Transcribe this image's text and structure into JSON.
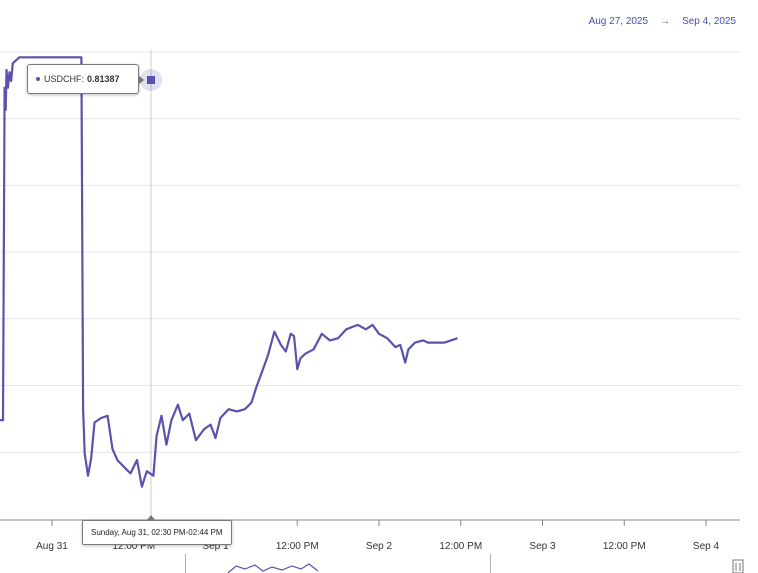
{
  "range": {
    "start": "Aug 27, 2025",
    "arrow": "→",
    "end": "Sep 4, 2025"
  },
  "tooltip": {
    "series": "USDCHF:",
    "value": "0.81387"
  },
  "crosshair_label": "Sunday, Aug 31, 02:30 PM-02:44 PM",
  "colors": {
    "line": "#5a53ad",
    "range_text": "#3f51b5",
    "grid": "#e6e6e6"
  },
  "chart_data": {
    "type": "line",
    "title": "",
    "xlabel": "",
    "ylabel": "",
    "grid": true,
    "x_ticks": [
      {
        "label": "Aug 31",
        "day": 0
      },
      {
        "label": "12:00 PM",
        "day": 0.5
      },
      {
        "label": "Sep 1",
        "day": 1
      },
      {
        "label": "12:00 PM",
        "day": 1.5
      },
      {
        "label": "Sep 2",
        "day": 2
      },
      {
        "label": "12:00 PM",
        "day": 2.5
      },
      {
        "label": "Sep 3",
        "day": 3
      },
      {
        "label": "12:00 PM",
        "day": 3.5
      },
      {
        "label": "Sep 4",
        "day": 4
      }
    ],
    "xlim": [
      -0.65,
      4.2
    ],
    "ylim": [
      0.793,
      0.8142
    ],
    "series": [
      {
        "name": "USDCHF",
        "points": [
          [
            -0.65,
            0.7975
          ],
          [
            -0.3,
            0.7975
          ],
          [
            -0.29,
            0.8125
          ],
          [
            -0.283,
            0.8115
          ],
          [
            -0.278,
            0.8133
          ],
          [
            -0.27,
            0.8125
          ],
          [
            -0.26,
            0.8132
          ],
          [
            -0.25,
            0.8128
          ],
          [
            -0.24,
            0.8136
          ],
          [
            -0.2,
            0.81387
          ],
          [
            0.18,
            0.81387
          ],
          [
            0.19,
            0.798
          ],
          [
            0.2,
            0.796
          ],
          [
            0.22,
            0.795
          ],
          [
            0.24,
            0.7958
          ],
          [
            0.26,
            0.7974
          ],
          [
            0.3,
            0.7976
          ],
          [
            0.34,
            0.7977
          ],
          [
            0.37,
            0.7962
          ],
          [
            0.4,
            0.7957
          ],
          [
            0.44,
            0.7954
          ],
          [
            0.48,
            0.7951
          ],
          [
            0.52,
            0.7957
          ],
          [
            0.55,
            0.7945
          ],
          [
            0.58,
            0.7952
          ],
          [
            0.62,
            0.795
          ],
          [
            0.64,
            0.7968
          ],
          [
            0.67,
            0.7977
          ],
          [
            0.7,
            0.7964
          ],
          [
            0.73,
            0.7975
          ],
          [
            0.77,
            0.7982
          ],
          [
            0.8,
            0.7975
          ],
          [
            0.84,
            0.7978
          ],
          [
            0.88,
            0.7966
          ],
          [
            0.93,
            0.7971
          ],
          [
            0.97,
            0.7973
          ],
          [
            1.0,
            0.7967
          ],
          [
            1.03,
            0.7976
          ],
          [
            1.08,
            0.798
          ],
          [
            1.13,
            0.7979
          ],
          [
            1.18,
            0.798
          ],
          [
            1.22,
            0.7983
          ],
          [
            1.25,
            0.799
          ],
          [
            1.28,
            0.7996
          ],
          [
            1.32,
            0.8004
          ],
          [
            1.36,
            0.8015
          ],
          [
            1.38,
            0.8012
          ],
          [
            1.4,
            0.8009
          ],
          [
            1.43,
            0.8006
          ],
          [
            1.46,
            0.8014
          ],
          [
            1.48,
            0.8013
          ],
          [
            1.5,
            0.7998
          ],
          [
            1.52,
            0.8003
          ],
          [
            1.55,
            0.8005
          ],
          [
            1.6,
            0.8007
          ],
          [
            1.65,
            0.8014
          ],
          [
            1.7,
            0.8011
          ],
          [
            1.75,
            0.8012
          ],
          [
            1.8,
            0.8016
          ],
          [
            1.87,
            0.8018
          ],
          [
            1.92,
            0.8016
          ],
          [
            1.96,
            0.8018
          ],
          [
            2.0,
            0.8014
          ],
          [
            2.05,
            0.8012
          ],
          [
            2.1,
            0.8008
          ],
          [
            2.13,
            0.8009
          ],
          [
            2.16,
            0.8001
          ],
          [
            2.18,
            0.8007
          ],
          [
            2.22,
            0.801
          ],
          [
            2.27,
            0.8011
          ],
          [
            2.3,
            0.801
          ],
          [
            2.35,
            0.801
          ],
          [
            2.4,
            0.801
          ],
          [
            2.44,
            0.8011
          ],
          [
            2.48,
            0.8012
          ]
        ]
      }
    ]
  }
}
